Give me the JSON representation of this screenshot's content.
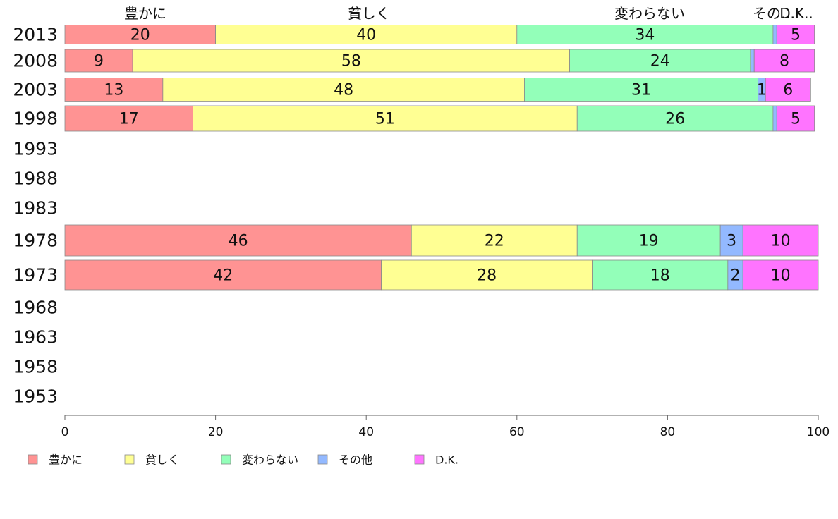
{
  "chart_data": {
    "type": "bar",
    "orientation": "horizontal",
    "stacked": true,
    "title": "",
    "xlabel": "",
    "ylabel": "",
    "xlim": [
      0,
      100
    ],
    "x_ticks": [
      0,
      20,
      40,
      60,
      80,
      100
    ],
    "categories": [
      "2013",
      "2008",
      "2003",
      "1998",
      "1993",
      "1988",
      "1983",
      "1978",
      "1973",
      "1968",
      "1963",
      "1958",
      "1953"
    ],
    "column_labels": [
      "豊かに",
      "貧しく",
      "変わらない",
      "その…",
      "D.K.."
    ],
    "series": [
      {
        "name": "豊かに",
        "color": "#ff9393",
        "values": [
          20,
          9,
          13,
          17,
          null,
          null,
          null,
          46,
          42,
          null,
          null,
          null,
          null
        ]
      },
      {
        "name": "貧しく",
        "color": "#ffff93",
        "values": [
          40,
          58,
          48,
          51,
          null,
          null,
          null,
          22,
          28,
          null,
          null,
          null,
          null
        ]
      },
      {
        "name": "変わらない",
        "color": "#93ffb9",
        "values": [
          34,
          24,
          31,
          26,
          null,
          null,
          null,
          19,
          18,
          null,
          null,
          null,
          null
        ]
      },
      {
        "name": "その他",
        "color": "#93b9ff",
        "values": [
          0.5,
          0.5,
          1,
          0.5,
          null,
          null,
          null,
          3,
          2,
          null,
          null,
          null,
          null
        ]
      },
      {
        "name": "D.K.",
        "color": "#ff74ff",
        "values": [
          5,
          8,
          6,
          5,
          null,
          null,
          null,
          10,
          10,
          null,
          null,
          null,
          null
        ]
      }
    ],
    "data_labels": [
      [
        "20",
        "40",
        "34",
        "",
        "5"
      ],
      [
        "9",
        "58",
        "24",
        "",
        "8"
      ],
      [
        "13",
        "48",
        "31",
        "1",
        "6"
      ],
      [
        "17",
        "51",
        "26",
        "",
        "5"
      ],
      null,
      null,
      null,
      [
        "46",
        "22",
        "19",
        "3",
        "10"
      ],
      [
        "42",
        "28",
        "18",
        "2",
        "10"
      ],
      null,
      null,
      null,
      null
    ],
    "legend_position": "bottom-left",
    "grid": false
  }
}
